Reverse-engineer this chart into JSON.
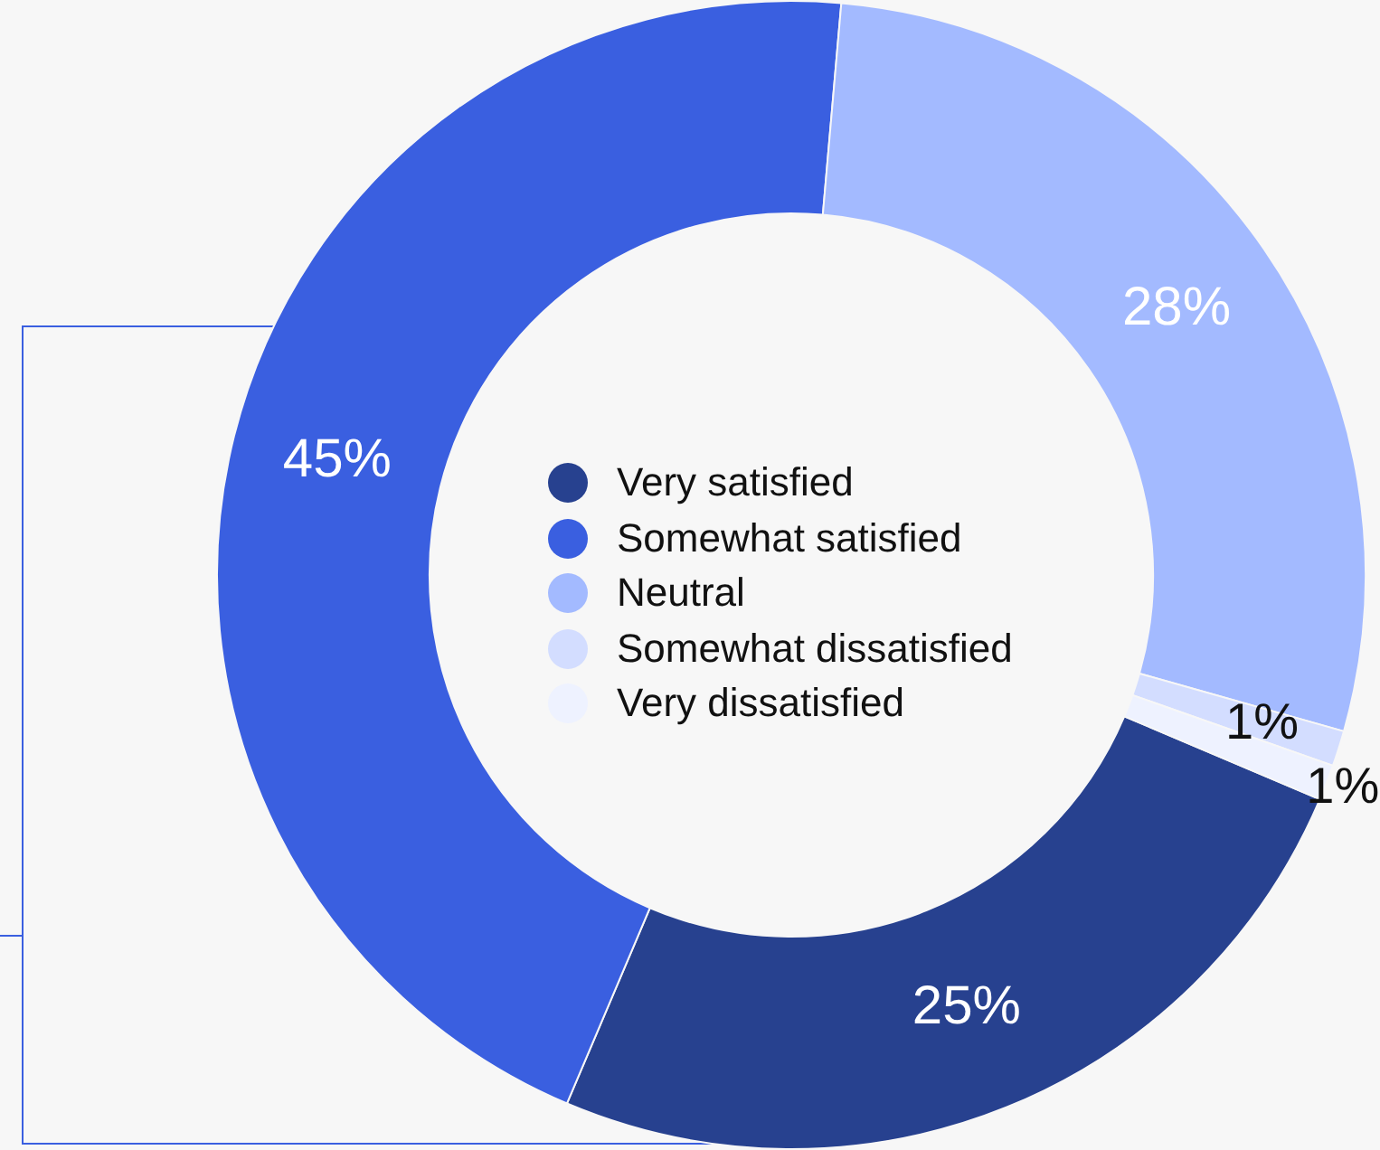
{
  "chart_data": {
    "type": "donut",
    "categories": [
      "Very satisfied",
      "Somewhat satisfied",
      "Neutral",
      "Somewhat dissatisfied",
      "Very dissatisfied"
    ],
    "values": [
      25,
      45,
      28,
      1,
      1
    ],
    "colors": [
      "#27418f",
      "#3a5fe0",
      "#a3baff",
      "#d3ddff",
      "#eef2ff"
    ],
    "value_labels": [
      "25%",
      "45%",
      "28%",
      "1%",
      "1%"
    ],
    "legend": "center"
  }
}
